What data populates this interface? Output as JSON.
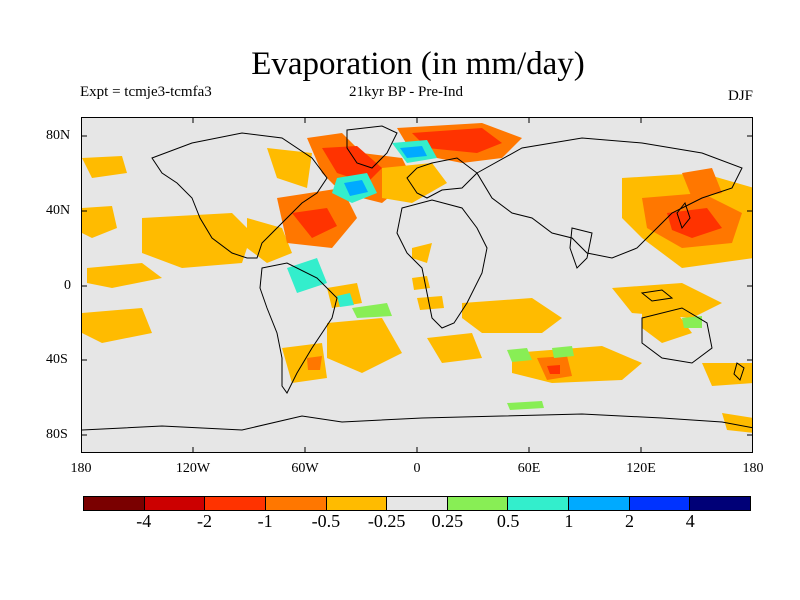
{
  "title": "Evaporation (in mm/day)",
  "subtitle_left": "Expt = tcmje3-tcmfa3",
  "subtitle_center": "21kyr BP - Pre-Ind",
  "subtitle_right": "DJF",
  "y_axis_ticks": [
    "80N",
    "40N",
    "0",
    "40S",
    "80S"
  ],
  "x_axis_ticks": [
    "180",
    "120W",
    "60W",
    "0",
    "60E",
    "120E",
    "180"
  ],
  "colorbar": {
    "colors": [
      "#7a0000",
      "#cc0000",
      "#ff3300",
      "#ff7700",
      "#ffbb00",
      "#e6e6e6",
      "#88ee55",
      "#33eecc",
      "#00aaff",
      "#0033ff",
      "#000077"
    ],
    "labels": [
      "-4",
      "-2",
      "-1",
      "-0.5",
      "-0.25",
      "0.25",
      "0.5",
      "1",
      "2",
      "4"
    ]
  }
}
